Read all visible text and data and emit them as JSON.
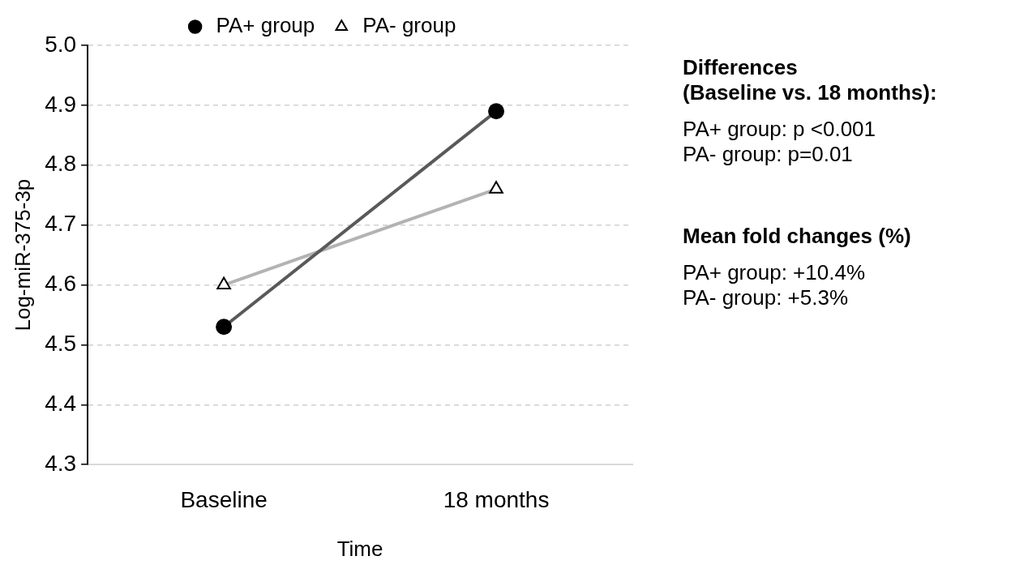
{
  "chart_data": {
    "type": "line",
    "xlabel": "Time",
    "ylabel": "Log-miR-375-3p",
    "categories": [
      "Baseline",
      "18 months"
    ],
    "series": [
      {
        "name": "PA+ group",
        "color": "#595959",
        "marker": "circle",
        "values": [
          4.53,
          4.89
        ]
      },
      {
        "name": "PA- group",
        "color": "#b3b3b3",
        "marker": "triangle",
        "values": [
          4.6,
          4.76
        ]
      }
    ],
    "ylim": [
      4.3,
      5.0
    ],
    "yticks": [
      {
        "value": 4.3,
        "label": "4.3"
      },
      {
        "value": 4.4,
        "label": "4.4"
      },
      {
        "value": 4.5,
        "label": "4.5"
      },
      {
        "value": 4.6,
        "label": "4.6"
      },
      {
        "value": 4.7,
        "label": "4.7"
      },
      {
        "value": 4.8,
        "label": "4.8"
      },
      {
        "value": 4.9,
        "label": "4.9"
      },
      {
        "value": 5.0,
        "label": "5.0"
      }
    ],
    "grid": "y",
    "legend": "top",
    "annotations": [
      "Differences",
      "(Baseline vs. 18 months):",
      "PA+ group: p <0.001",
      "PA- group: p=0.01",
      "Mean fold changes (%)",
      "PA+ group: +10.4%",
      "PA- group: +5.3%"
    ]
  }
}
